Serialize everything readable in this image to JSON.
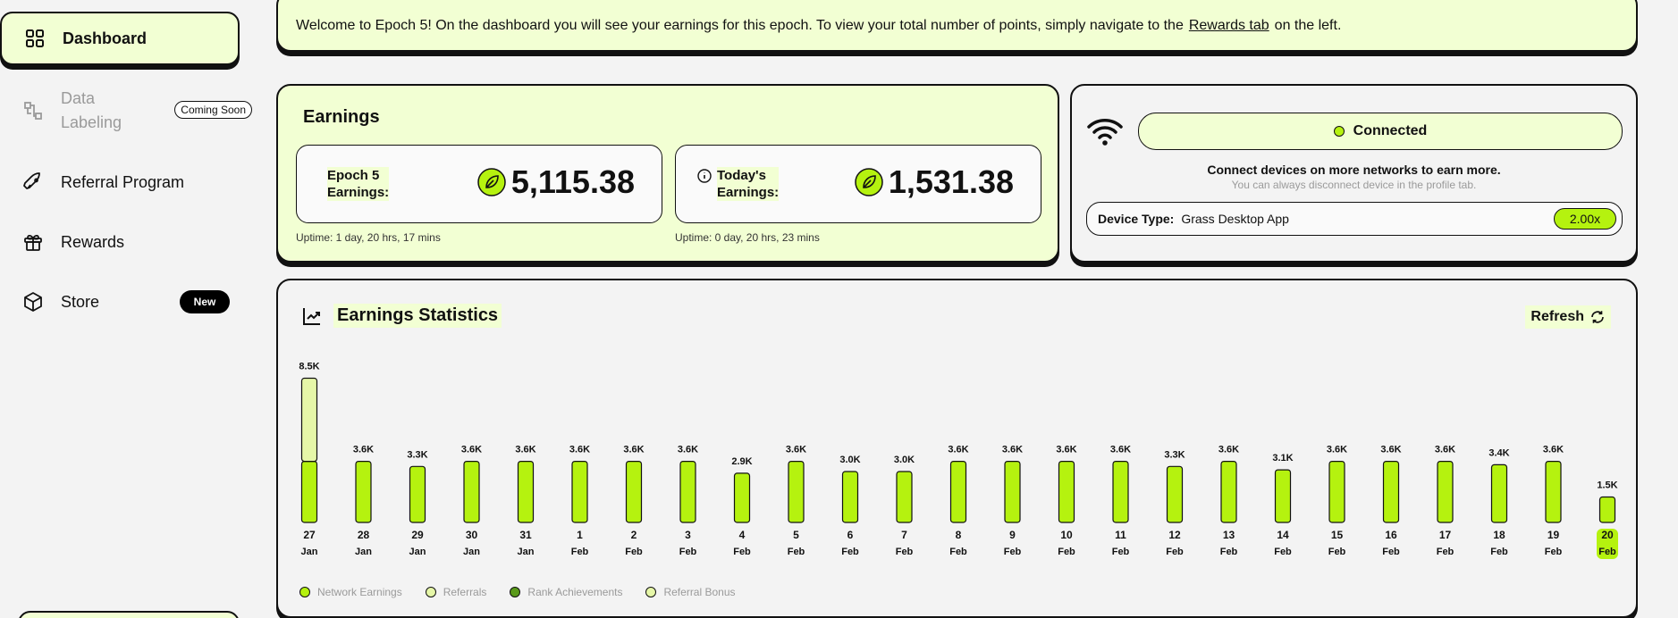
{
  "sidebar": {
    "items": [
      {
        "label": "Dashboard",
        "icon": "grid-icon"
      },
      {
        "label": "Data\nLabeling",
        "icon": "data-labeling-icon",
        "badge": "Coming Soon"
      },
      {
        "label": "Referral Program",
        "icon": "rocket-icon"
      },
      {
        "label": "Rewards",
        "icon": "gift-icon"
      },
      {
        "label": "Store",
        "icon": "box-icon",
        "badge": "New"
      }
    ]
  },
  "welcome": {
    "text_before": "Welcome to Epoch 5! On the dashboard you will see your earnings for this epoch. To view your total number of points, simply navigate to the",
    "link": "Rewards tab",
    "text_after": "on the left."
  },
  "earnings": {
    "title": "Earnings",
    "epoch": {
      "label_1": "Epoch 5",
      "label_2": "Earnings:",
      "value": "5,115.38",
      "uptime": "Uptime: 1 day, 20 hrs, 17 mins"
    },
    "today": {
      "label_1": "Today's",
      "label_2": "Earnings:",
      "value": "1,531.38",
      "uptime": "Uptime: 0 day, 20 hrs, 23 mins"
    }
  },
  "device": {
    "status": "Connected",
    "message": "Connect devices on more networks to earn more.",
    "sub_message": "You can always disconnect device in the profile tab.",
    "type_label": "Device Type:",
    "type_value": "Grass Desktop App",
    "multiplier": "2.00x"
  },
  "stats": {
    "title": "Earnings Statistics",
    "refresh": "Refresh",
    "legend": [
      {
        "name": "Network Earnings",
        "color": "#b5f20f"
      },
      {
        "name": "Referrals",
        "color": "#e6f7a8"
      },
      {
        "name": "Rank Achievements",
        "color": "#5a9a1a"
      },
      {
        "name": "Referral Bonus",
        "color": "#e6f7a8"
      }
    ]
  },
  "chart_data": {
    "type": "bar",
    "title": "Earnings Statistics",
    "categories": [
      "27 Jan",
      "28 Jan",
      "29 Jan",
      "30 Jan",
      "31 Jan",
      "1 Feb",
      "2 Feb",
      "3 Feb",
      "4 Feb",
      "5 Feb",
      "6 Feb",
      "7 Feb",
      "8 Feb",
      "9 Feb",
      "10 Feb",
      "11 Feb",
      "12 Feb",
      "13 Feb",
      "14 Feb",
      "15 Feb",
      "16 Feb",
      "17 Feb",
      "18 Feb",
      "19 Feb",
      "20 Feb"
    ],
    "day": [
      "27",
      "28",
      "29",
      "30",
      "31",
      "1",
      "2",
      "3",
      "4",
      "5",
      "6",
      "7",
      "8",
      "9",
      "10",
      "11",
      "12",
      "13",
      "14",
      "15",
      "16",
      "17",
      "18",
      "19",
      "20"
    ],
    "month": [
      "Jan",
      "Jan",
      "Jan",
      "Jan",
      "Jan",
      "Feb",
      "Feb",
      "Feb",
      "Feb",
      "Feb",
      "Feb",
      "Feb",
      "Feb",
      "Feb",
      "Feb",
      "Feb",
      "Feb",
      "Feb",
      "Feb",
      "Feb",
      "Feb",
      "Feb",
      "Feb",
      "Feb",
      "Feb"
    ],
    "labels": [
      "8.5K",
      "3.6K",
      "3.3K",
      "3.6K",
      "3.6K",
      "3.6K",
      "3.6K",
      "3.6K",
      "2.9K",
      "3.6K",
      "3.0K",
      "3.0K",
      "3.6K",
      "3.6K",
      "3.6K",
      "3.6K",
      "3.3K",
      "3.6K",
      "3.1K",
      "3.6K",
      "3.6K",
      "3.6K",
      "3.4K",
      "3.6K",
      "1.5K"
    ],
    "series": [
      {
        "name": "Network Earnings",
        "color": "#b5f20f",
        "values": [
          3.6,
          3.6,
          3.3,
          3.6,
          3.6,
          3.6,
          3.6,
          3.6,
          2.9,
          3.6,
          3.0,
          3.0,
          3.6,
          3.6,
          3.6,
          3.6,
          3.3,
          3.6,
          3.1,
          3.6,
          3.6,
          3.6,
          3.4,
          3.6,
          1.5
        ]
      },
      {
        "name": "Referrals",
        "color": "#e6f7a8",
        "values": [
          4.9,
          0,
          0,
          0,
          0,
          0,
          0,
          0,
          0,
          0,
          0,
          0,
          0,
          0,
          0,
          0,
          0,
          0,
          0,
          0,
          0,
          0,
          0,
          0,
          0
        ]
      }
    ],
    "highlight_index": 24,
    "highlight_color": "#b5f20f"
  }
}
